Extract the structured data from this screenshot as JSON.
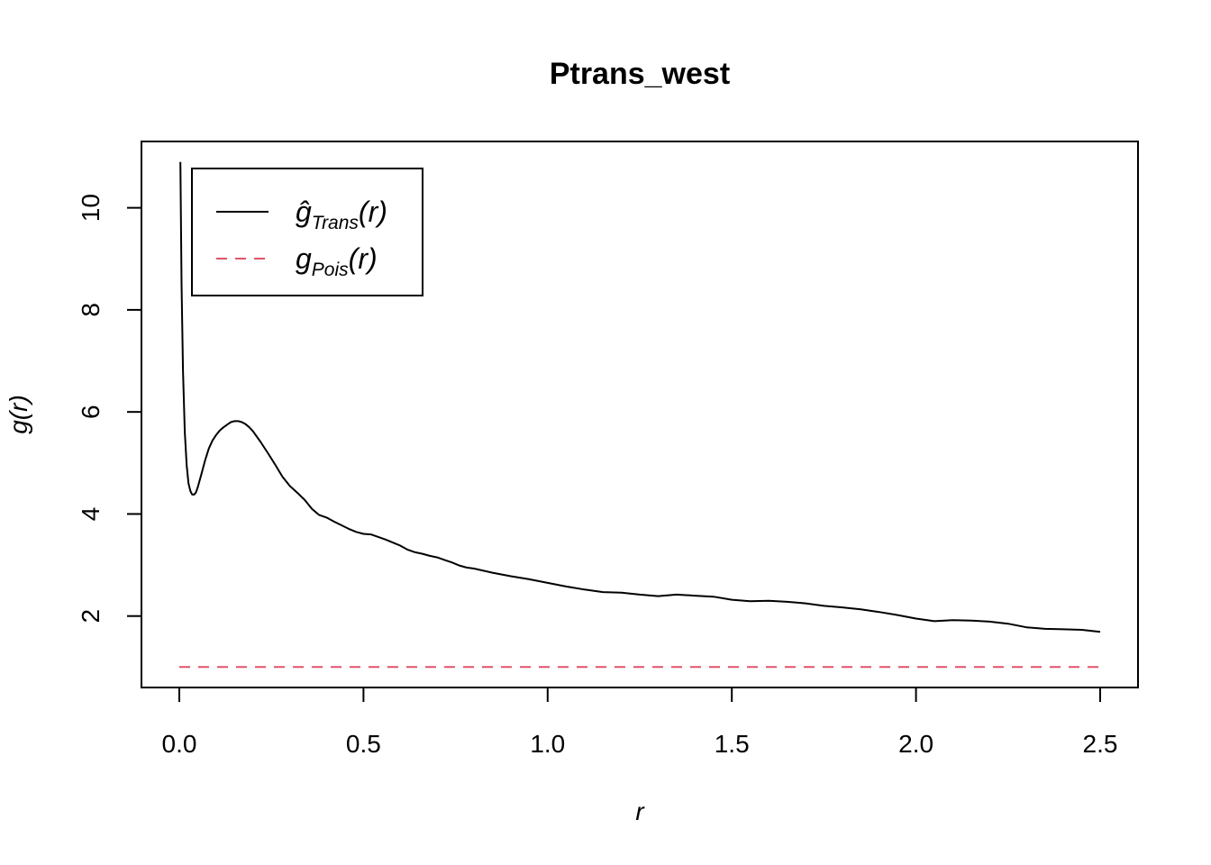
{
  "chart_data": {
    "type": "line",
    "title": "Ptrans_west",
    "xlabel": "r",
    "ylabel": "g(r)",
    "xlim": [
      0,
      2.5
    ],
    "ylim": [
      0.6,
      11.3
    ],
    "x_ticks": [
      0.0,
      0.5,
      1.0,
      1.5,
      2.0,
      2.5
    ],
    "x_tick_labels": [
      "0.0",
      "0.5",
      "1.0",
      "1.5",
      "2.0",
      "2.5"
    ],
    "y_ticks": [
      2,
      4,
      6,
      8,
      10
    ],
    "y_tick_labels": [
      "2",
      "4",
      "6",
      "8",
      "10"
    ],
    "grid": false,
    "legend_position": "top-left",
    "legend": [
      {
        "main": "ĝ",
        "sub": "Trans",
        "arg": "(r)",
        "style": "solid",
        "color": "#000000"
      },
      {
        "main": "g",
        "sub": "Pois",
        "arg": "(r)",
        "style": "dashed",
        "color": "#DF536B"
      }
    ],
    "series": [
      {
        "name": "ĝTrans(r)",
        "style": "solid",
        "color": "#000000",
        "x": [
          0.003,
          0.006,
          0.01,
          0.015,
          0.02,
          0.025,
          0.03,
          0.035,
          0.04,
          0.045,
          0.05,
          0.06,
          0.07,
          0.08,
          0.09,
          0.1,
          0.11,
          0.12,
          0.13,
          0.14,
          0.15,
          0.16,
          0.17,
          0.18,
          0.19,
          0.2,
          0.22,
          0.24,
          0.26,
          0.28,
          0.3,
          0.32,
          0.34,
          0.36,
          0.38,
          0.4,
          0.42,
          0.44,
          0.46,
          0.48,
          0.5,
          0.52,
          0.54,
          0.56,
          0.58,
          0.6,
          0.62,
          0.64,
          0.66,
          0.68,
          0.7,
          0.72,
          0.74,
          0.76,
          0.78,
          0.8,
          0.85,
          0.9,
          0.95,
          1.0,
          1.05,
          1.1,
          1.15,
          1.2,
          1.25,
          1.3,
          1.35,
          1.4,
          1.45,
          1.5,
          1.55,
          1.6,
          1.65,
          1.7,
          1.75,
          1.8,
          1.85,
          1.9,
          1.95,
          2.0,
          2.05,
          2.1,
          2.15,
          2.2,
          2.25,
          2.3,
          2.35,
          2.4,
          2.45,
          2.5
        ],
        "values": [
          10.9,
          8.5,
          6.8,
          5.6,
          4.95,
          4.6,
          4.45,
          4.38,
          4.38,
          4.42,
          4.52,
          4.78,
          5.05,
          5.28,
          5.44,
          5.55,
          5.64,
          5.7,
          5.75,
          5.8,
          5.82,
          5.82,
          5.8,
          5.76,
          5.7,
          5.62,
          5.42,
          5.2,
          4.97,
          4.73,
          4.55,
          4.42,
          4.28,
          4.1,
          3.98,
          3.93,
          3.85,
          3.78,
          3.71,
          3.65,
          3.61,
          3.6,
          3.55,
          3.5,
          3.44,
          3.38,
          3.3,
          3.25,
          3.22,
          3.18,
          3.15,
          3.1,
          3.05,
          2.99,
          2.95,
          2.93,
          2.85,
          2.78,
          2.72,
          2.65,
          2.58,
          2.52,
          2.47,
          2.46,
          2.42,
          2.39,
          2.42,
          2.4,
          2.38,
          2.32,
          2.29,
          2.3,
          2.28,
          2.25,
          2.2,
          2.17,
          2.13,
          2.08,
          2.02,
          1.95,
          1.9,
          1.92,
          1.91,
          1.89,
          1.85,
          1.78,
          1.75,
          1.74,
          1.73,
          1.69
        ]
      },
      {
        "name": "gPois(r)",
        "style": "dashed",
        "color": "#DF536B",
        "x": [
          0.0,
          2.5
        ],
        "values": [
          1.0,
          1.0
        ]
      }
    ]
  }
}
